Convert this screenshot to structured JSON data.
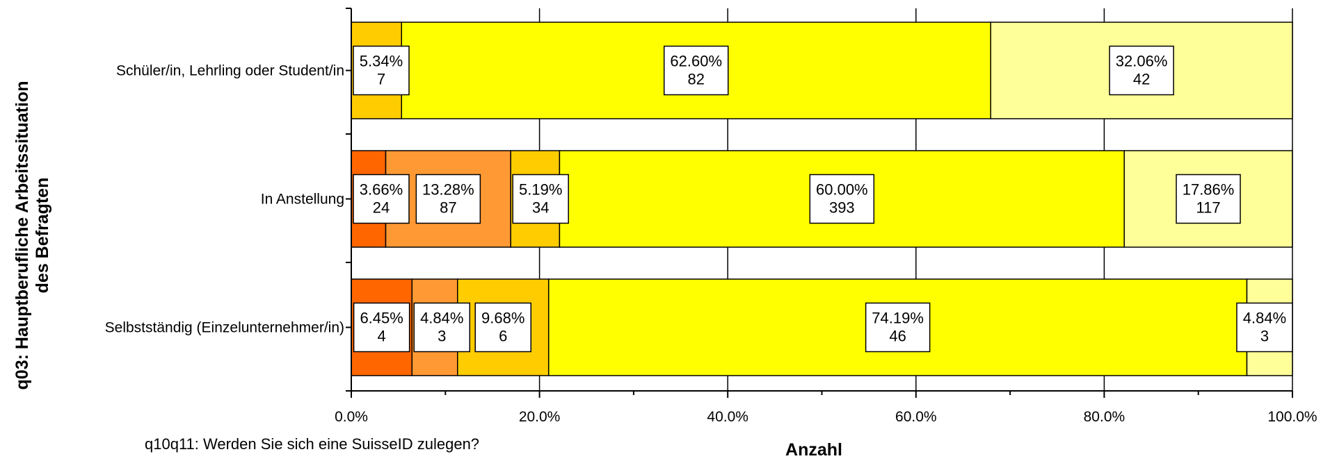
{
  "chart_data": {
    "type": "bar",
    "orientation": "horizontal",
    "stacked": true,
    "percent_stacked": true,
    "xlabel": "Anzahl",
    "ylabel": "q03: Hauptberufliche Arbeitssituation des Befragten",
    "ylabel_lines": [
      "q03: Hauptberufliche Arbeitssituation",
      "des Befragten"
    ],
    "legend_title": "q10q11: Werden Sie sich eine SuisseID zulegen?",
    "xlim": [
      0,
      100
    ],
    "x_ticks": [
      "0.0%",
      "20.0%",
      "40.0%",
      "60.0%",
      "80.0%",
      "100.0%"
    ],
    "grid": true,
    "segment_colors": [
      "#ff6600",
      "#ff9933",
      "#ffcc00",
      "#ffff00",
      "#ffff99"
    ],
    "categories": [
      {
        "label": "Schüler/in, Lehrling oder Student/in",
        "segments": [
          {
            "color_index": 2,
            "percent": 5.34,
            "count": 7,
            "pct_label": "5.34%",
            "count_label": "7"
          },
          {
            "color_index": 3,
            "percent": 62.6,
            "count": 82,
            "pct_label": "62.60%",
            "count_label": "82"
          },
          {
            "color_index": 4,
            "percent": 32.06,
            "count": 42,
            "pct_label": "32.06%",
            "count_label": "42"
          }
        ]
      },
      {
        "label": "In Anstellung",
        "segments": [
          {
            "color_index": 0,
            "percent": 3.66,
            "count": 24,
            "pct_label": "3.66%",
            "count_label": "24"
          },
          {
            "color_index": 1,
            "percent": 13.28,
            "count": 87,
            "pct_label": "13.28%",
            "count_label": "87"
          },
          {
            "color_index": 2,
            "percent": 5.19,
            "count": 34,
            "pct_label": "5.19%",
            "count_label": "34"
          },
          {
            "color_index": 3,
            "percent": 60.0,
            "count": 393,
            "pct_label": "60.00%",
            "count_label": "393"
          },
          {
            "color_index": 4,
            "percent": 17.86,
            "count": 117,
            "pct_label": "17.86%",
            "count_label": "117"
          }
        ]
      },
      {
        "label": "Selbstständig (Einzelunternehmer/in)",
        "segments": [
          {
            "color_index": 0,
            "percent": 6.45,
            "count": 4,
            "pct_label": "6.45%",
            "count_label": "4"
          },
          {
            "color_index": 1,
            "percent": 4.84,
            "count": 3,
            "pct_label": "4.84%",
            "count_label": "3"
          },
          {
            "color_index": 2,
            "percent": 9.68,
            "count": 6,
            "pct_label": "9.68%",
            "count_label": "6"
          },
          {
            "color_index": 3,
            "percent": 74.19,
            "count": 46,
            "pct_label": "74.19%",
            "count_label": "46"
          },
          {
            "color_index": 4,
            "percent": 4.84,
            "count": 3,
            "pct_label": "4.84%",
            "count_label": "3"
          }
        ]
      }
    ]
  }
}
